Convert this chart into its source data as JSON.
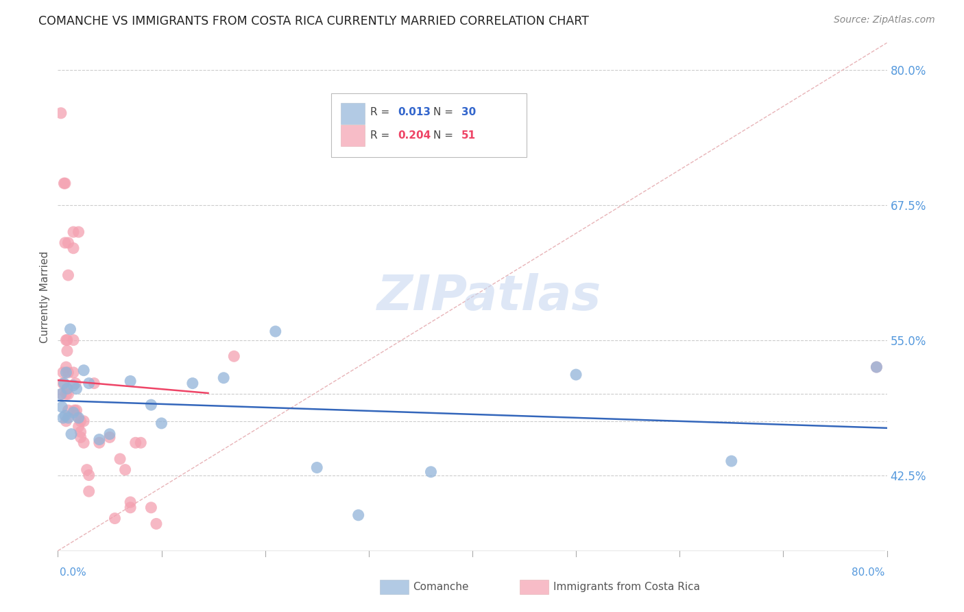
{
  "title": "COMANCHE VS IMMIGRANTS FROM COSTA RICA CURRENTLY MARRIED CORRELATION CHART",
  "source": "Source: ZipAtlas.com",
  "ylabel": "Currently Married",
  "xmin": 0.0,
  "xmax": 0.8,
  "ymin": 0.355,
  "ymax": 0.825,
  "comanche_R": 0.013,
  "comanche_N": 30,
  "costarica_R": 0.204,
  "costarica_N": 51,
  "comanche_color": "#92B4D9",
  "costarica_color": "#F4A0B0",
  "comanche_line_color": "#3366BB",
  "costarica_line_color": "#EE4466",
  "diagonal_color": "#E8B4B8",
  "ytick_positions": [
    0.425,
    0.475,
    0.5,
    0.55,
    0.675,
    0.8
  ],
  "ytick_labels": [
    "42.5%",
    "",
    "",
    "55.0%",
    "67.5%",
    "80.0%"
  ],
  "watermark_text": "ZIPatlas",
  "comanche_x": [
    0.003,
    0.004,
    0.005,
    0.006,
    0.007,
    0.008,
    0.009,
    0.01,
    0.012,
    0.013,
    0.015,
    0.015,
    0.018,
    0.02,
    0.025,
    0.03,
    0.04,
    0.05,
    0.07,
    0.09,
    0.1,
    0.13,
    0.16,
    0.21,
    0.25,
    0.29,
    0.36,
    0.5,
    0.65,
    0.79
  ],
  "comanche_y": [
    0.5,
    0.488,
    0.478,
    0.51,
    0.48,
    0.52,
    0.505,
    0.478,
    0.56,
    0.463,
    0.508,
    0.483,
    0.505,
    0.478,
    0.522,
    0.51,
    0.458,
    0.463,
    0.512,
    0.49,
    0.473,
    0.51,
    0.515,
    0.558,
    0.432,
    0.388,
    0.428,
    0.518,
    0.438,
    0.525
  ],
  "costarica_x": [
    0.003,
    0.004,
    0.005,
    0.005,
    0.006,
    0.007,
    0.007,
    0.008,
    0.008,
    0.008,
    0.008,
    0.009,
    0.009,
    0.009,
    0.01,
    0.01,
    0.01,
    0.01,
    0.01,
    0.015,
    0.015,
    0.015,
    0.015,
    0.016,
    0.017,
    0.018,
    0.018,
    0.02,
    0.02,
    0.022,
    0.022,
    0.022,
    0.025,
    0.025,
    0.028,
    0.03,
    0.03,
    0.035,
    0.04,
    0.05,
    0.055,
    0.06,
    0.065,
    0.07,
    0.07,
    0.075,
    0.08,
    0.09,
    0.095,
    0.17,
    0.79
  ],
  "costarica_y": [
    0.76,
    0.5,
    0.52,
    0.51,
    0.695,
    0.695,
    0.64,
    0.55,
    0.525,
    0.5,
    0.475,
    0.55,
    0.54,
    0.505,
    0.64,
    0.61,
    0.52,
    0.5,
    0.485,
    0.65,
    0.635,
    0.55,
    0.52,
    0.485,
    0.51,
    0.485,
    0.48,
    0.65,
    0.47,
    0.475,
    0.465,
    0.46,
    0.475,
    0.455,
    0.43,
    0.425,
    0.41,
    0.51,
    0.455,
    0.46,
    0.385,
    0.44,
    0.43,
    0.4,
    0.395,
    0.455,
    0.455,
    0.395,
    0.38,
    0.535,
    0.525
  ],
  "comanche_line_x0": 0.0,
  "comanche_line_x1": 0.8,
  "comanche_line_y0": 0.483,
  "comanche_line_y1": 0.492,
  "costarica_line_x0": 0.0,
  "costarica_line_x1": 0.145,
  "costarica_line_y0": 0.462,
  "costarica_line_y1": 0.56
}
